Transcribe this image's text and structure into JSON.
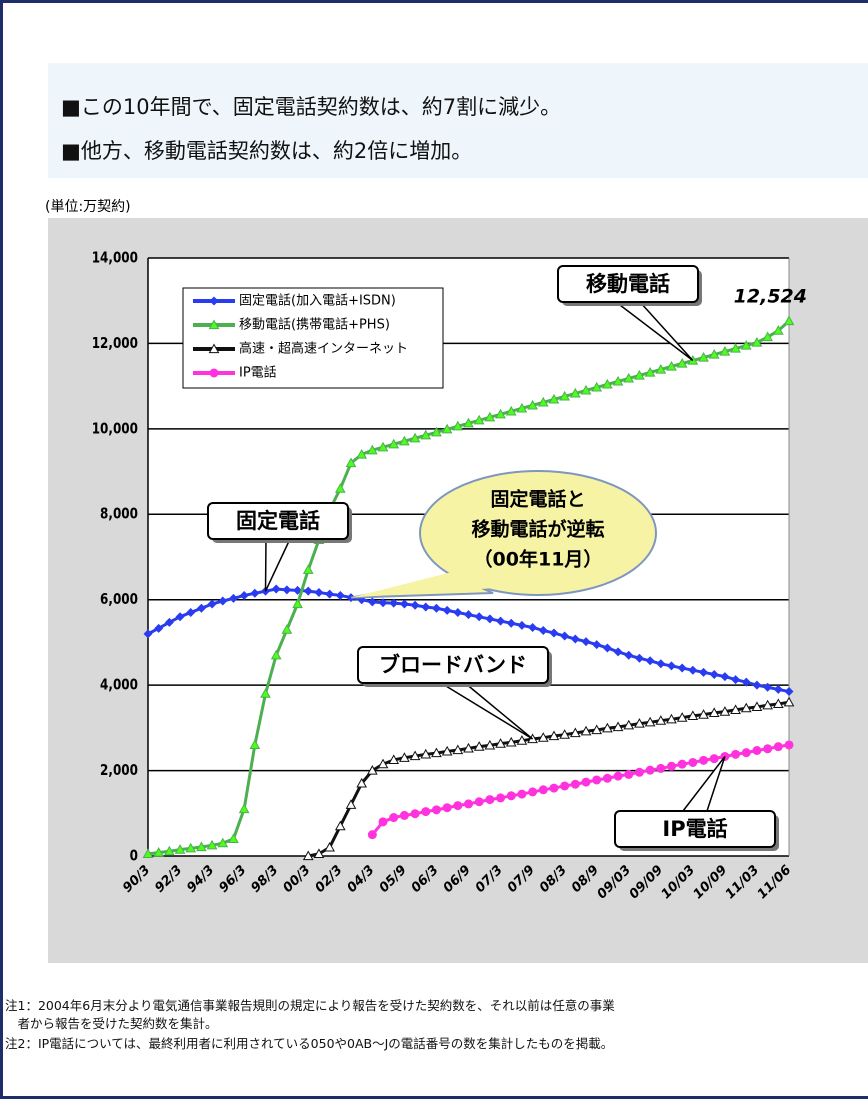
{
  "header": {
    "bullets": [
      "■この10年間で、固定電話契約数は、約7割に減少。",
      "■他方、移動電話契約数は、約2倍に増加。"
    ],
    "unit": "(単位:万契約)"
  },
  "notes": [
    "注1：2004年6月末分より電気通信事業報告規則の規定により報告を受けた契約数を、それ以前は任意の事業",
    "　者から報告を受けた契約数を集計。",
    "注2：IP電話については、最終利用者に利用されている050や0AB～Jの電話番号の数を集計したものを掲載。"
  ],
  "chart_data": {
    "type": "line",
    "categories": [
      "90/3",
      null,
      null,
      "92/3",
      null,
      null,
      "94/3",
      null,
      null,
      "96/3",
      null,
      null,
      "98/3",
      null,
      null,
      "00/3",
      null,
      null,
      "02/3",
      null,
      null,
      "04/3",
      null,
      null,
      "05/9",
      null,
      null,
      "06/3",
      null,
      null,
      "06/9",
      null,
      null,
      "07/3",
      null,
      null,
      "07/9",
      null,
      null,
      "08/3",
      null,
      null,
      "08/9",
      null,
      null,
      "09/03",
      null,
      null,
      "09/09",
      null,
      null,
      "10/03",
      null,
      null,
      "10/09",
      null,
      null,
      "11/03",
      null,
      null,
      "11/06"
    ],
    "ylim": [
      0,
      14000
    ],
    "yticks": [
      0,
      {
        "value": 2000,
        "label": "2,000"
      },
      {
        "value": 4000,
        "label": "4,000"
      },
      {
        "value": 6000,
        "label": "6,000"
      },
      {
        "value": 8000,
        "label": "8,000"
      },
      {
        "value": 10000,
        "label": "10,000"
      },
      {
        "value": 12000,
        "label": "12,000"
      },
      {
        "value": 14000,
        "label": "14,000"
      }
    ],
    "grid": true,
    "series": [
      {
        "name": "固定電話(加入電話+ISDN)",
        "color": "#2a3cf0",
        "marker": "diamond",
        "values": [
          5200,
          5330,
          5470,
          5600,
          5700,
          5800,
          5900,
          5970,
          6030,
          6100,
          6150,
          6200,
          6250,
          6230,
          6220,
          6200,
          6170,
          6130,
          6100,
          6050,
          6000,
          5950,
          5930,
          5920,
          5900,
          5870,
          5830,
          5800,
          5750,
          5700,
          5650,
          5600,
          5550,
          5500,
          5450,
          5400,
          5350,
          5280,
          5220,
          5150,
          5080,
          5020,
          4950,
          4870,
          4780,
          4700,
          4630,
          4570,
          4500,
          4450,
          4400,
          4350,
          4300,
          4250,
          4200,
          4130,
          4070,
          4000,
          3950,
          3900,
          3850
        ]
      },
      {
        "name": "移動電話(携帯電話+PHS)",
        "color": "#4caf50",
        "marker": "triangle",
        "marker_color": "#4cff1a",
        "values": [
          50,
          80,
          110,
          150,
          180,
          210,
          250,
          300,
          400,
          1100,
          2600,
          3800,
          4700,
          5300,
          5900,
          6700,
          7400,
          8100,
          8600,
          9200,
          9400,
          9500,
          9570,
          9640,
          9710,
          9780,
          9850,
          9920,
          9990,
          10060,
          10130,
          10200,
          10270,
          10340,
          10410,
          10480,
          10550,
          10620,
          10690,
          10760,
          10830,
          10900,
          10970,
          11040,
          11110,
          11180,
          11250,
          11320,
          11390,
          11460,
          11530,
          11600,
          11670,
          11740,
          11810,
          11880,
          11950,
          12020,
          12150,
          12300,
          12524
        ],
        "value_labels": [
          null,
          null,
          null,
          null,
          null,
          null,
          null,
          null,
          null,
          null,
          null,
          null,
          null,
          null,
          null,
          null,
          null,
          null,
          null,
          null,
          null,
          null,
          null,
          null,
          null,
          null,
          null,
          null,
          null,
          null,
          null,
          null,
          null,
          null,
          null,
          null,
          null,
          null,
          null,
          null,
          null,
          null,
          null,
          null,
          null,
          null,
          null,
          null,
          null,
          null,
          null,
          null,
          null,
          null,
          null,
          null,
          null,
          null,
          null,
          null,
          "12,524"
        ]
      },
      {
        "name": "高速・超高速インターネット",
        "color": "#111111",
        "marker": "triangle",
        "marker_color": "#ffffff",
        "values": [
          null,
          null,
          null,
          null,
          null,
          null,
          null,
          null,
          null,
          null,
          null,
          null,
          null,
          null,
          null,
          0,
          50,
          200,
          700,
          1200,
          1700,
          2000,
          2150,
          2250,
          2300,
          2340,
          2380,
          2410,
          2450,
          2480,
          2520,
          2560,
          2590,
          2630,
          2660,
          2700,
          2740,
          2770,
          2810,
          2840,
          2880,
          2920,
          2950,
          2990,
          3020,
          3060,
          3100,
          3130,
          3170,
          3200,
          3240,
          3280,
          3310,
          3350,
          3380,
          3420,
          3460,
          3490,
          3530,
          3560,
          3600
        ]
      },
      {
        "name": "IP電話",
        "color": "#ff33dd",
        "marker": "circle",
        "values": [
          null,
          null,
          null,
          null,
          null,
          null,
          null,
          null,
          null,
          null,
          null,
          null,
          null,
          null,
          null,
          null,
          null,
          null,
          null,
          null,
          null,
          500,
          800,
          900,
          950,
          990,
          1040,
          1080,
          1130,
          1180,
          1220,
          1270,
          1320,
          1360,
          1410,
          1450,
          1500,
          1550,
          1590,
          1640,
          1680,
          1730,
          1780,
          1820,
          1870,
          1910,
          1960,
          2010,
          2050,
          2100,
          2150,
          2190,
          2240,
          2280,
          2330,
          2380,
          2420,
          2470,
          2510,
          2560,
          2600
        ]
      }
    ],
    "annotations": [
      {
        "text": "移動電話",
        "series": 1,
        "index": 51
      },
      {
        "text": "固定電話",
        "series": 0,
        "index": 11
      },
      {
        "text": "ブロードバンド",
        "series": 2,
        "index": 36
      },
      {
        "text": "IP電話",
        "series": 3,
        "index": 54
      }
    ],
    "callout": {
      "lines": [
        "固定電話と",
        "移動電話が逆転",
        "（00年11月）"
      ],
      "series": 0,
      "index": 19
    }
  }
}
